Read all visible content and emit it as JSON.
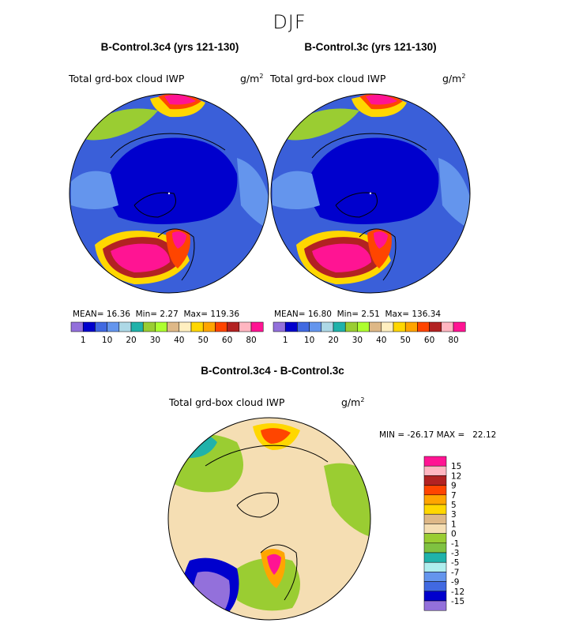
{
  "season": "DJF",
  "units_text": "g/m",
  "units_exp": "2",
  "panels": [
    {
      "title": "B-Control.3c4 (yrs 121-130)",
      "variable": "Total grd-box cloud IWP",
      "mean_label": "MEAN=",
      "mean": "16.36",
      "min_label": "Min=",
      "min": "2.27",
      "max_label": "Max=",
      "max": "119.36"
    },
    {
      "title": "B-Control.3c (yrs 121-130)",
      "variable": "Total grd-box cloud IWP",
      "mean_label": "MEAN=",
      "mean": "16.80",
      "min_label": "Min=",
      "min": "2.51",
      "max_label": "Max=",
      "max": "136.34"
    },
    {
      "title": "B-Control.3c4 - B-Control.3c",
      "variable": "Total grd-box cloud IWP",
      "minmax": "MIN = -26.17 MAX =   22.12"
    }
  ],
  "chart_data": [
    {
      "type": "heatmap",
      "projection": "north-polar-stereographic",
      "title": "B-Control.3c4 (yrs 121-130)",
      "variable": "Total grd-box cloud IWP",
      "units": "g/m^2",
      "stats": {
        "mean": 16.36,
        "min": 2.27,
        "max": 119.36
      },
      "colorbar_levels": [
        1,
        5,
        10,
        15,
        20,
        25,
        30,
        35,
        40,
        45,
        50,
        55,
        60,
        70,
        80
      ],
      "colorbar_labels": [
        "1",
        "10",
        "20",
        "30",
        "40",
        "50",
        "60",
        "80"
      ],
      "colors": [
        "#9370db",
        "#0000cd",
        "#4169e1",
        "#6495ed",
        "#add8e6",
        "#20b2aa",
        "#9acd32",
        "#adff2f",
        "#deb887",
        "#ffefc0",
        "#ffd700",
        "#ffa500",
        "#ff4500",
        "#b22222",
        "#ffb6c1",
        "#ff1493"
      ]
    },
    {
      "type": "heatmap",
      "projection": "north-polar-stereographic",
      "title": "B-Control.3c (yrs 121-130)",
      "variable": "Total grd-box cloud IWP",
      "units": "g/m^2",
      "stats": {
        "mean": 16.8,
        "min": 2.51,
        "max": 136.34
      },
      "colorbar_levels": [
        1,
        5,
        10,
        15,
        20,
        25,
        30,
        35,
        40,
        45,
        50,
        55,
        60,
        70,
        80
      ],
      "colorbar_labels": [
        "1",
        "10",
        "20",
        "30",
        "40",
        "50",
        "60",
        "80"
      ],
      "colors": [
        "#9370db",
        "#0000cd",
        "#4169e1",
        "#6495ed",
        "#add8e6",
        "#20b2aa",
        "#9acd32",
        "#adff2f",
        "#deb887",
        "#ffefc0",
        "#ffd700",
        "#ffa500",
        "#ff4500",
        "#b22222",
        "#ffb6c1",
        "#ff1493"
      ]
    },
    {
      "type": "heatmap",
      "projection": "north-polar-stereographic",
      "title": "B-Control.3c4 - B-Control.3c",
      "variable": "Total grd-box cloud IWP",
      "units": "g/m^2",
      "stats": {
        "min": -26.17,
        "max": 22.12
      },
      "colorbar_labels": [
        "15",
        "12",
        "9",
        "7",
        "5",
        "3",
        "1",
        "0",
        "-1",
        "-3",
        "-5",
        "-7",
        "-9",
        "-12",
        "-15"
      ],
      "colors": [
        "#ff1493",
        "#ffb6c1",
        "#b22222",
        "#ff4500",
        "#ffa500",
        "#ffd700",
        "#deb887",
        "#f5deb3",
        "#9acd32",
        "#7fc241",
        "#20b2aa",
        "#afeeee",
        "#6495ed",
        "#4169e1",
        "#0000cd",
        "#9370db"
      ]
    }
  ]
}
